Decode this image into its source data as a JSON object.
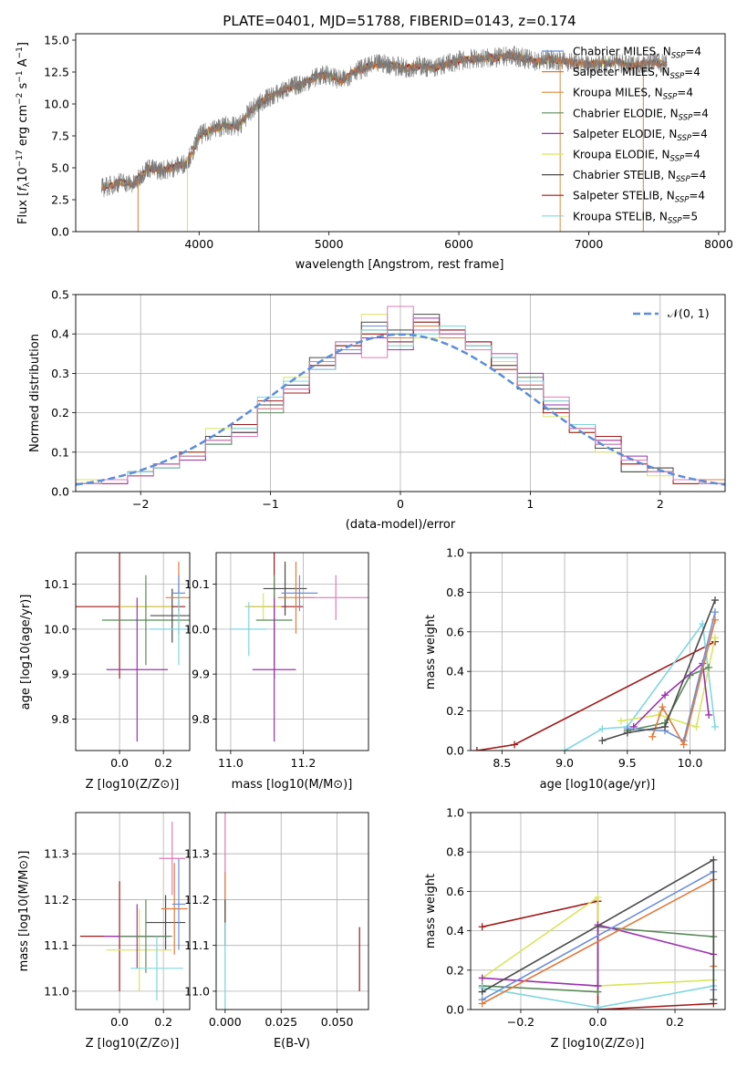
{
  "colors": {
    "Chabrier MILES": "#6b8fd6",
    "Salpeter MILES": "#e07b3c",
    "Kroupa MILES": "#d98b3a",
    "Chabrier ELODIE": "#5a8a5a",
    "Salpeter ELODIE": "#9b30b0",
    "Kroupa ELODIE": "#d7e65a",
    "Chabrier STELIB": "#4a4a4a",
    "Salpeter STELIB": "#a01818",
    "Kroupa STELIB": "#7fd6e0",
    "pink": "#e07ab8",
    "normal": "#5b8dd9"
  },
  "chart_data": [
    {
      "id": "spectrum",
      "type": "line",
      "title": "PLATE=0401, MJD=51788, FIBERID=0143, z=0.174",
      "xlabel": "wavelength [Angstrom, rest frame]",
      "ylabel": "Flux [f_λ 10^{-17} erg cm^{-2} s^{-1} A^{-1}]",
      "xlim": [
        3050,
        8050
      ],
      "ylim": [
        0,
        15.5
      ],
      "xticks": [
        4000,
        5000,
        6000,
        7000,
        8000
      ],
      "yticks": [
        0.0,
        2.5,
        5.0,
        7.5,
        10.0,
        12.5,
        15.0
      ],
      "grid": false,
      "legend_position": "top-right",
      "legend": [
        "Chabrier MILES, N_SSP=4",
        "Salpeter MILES, N_SSP=4",
        "Kroupa MILES, N_SSP=4",
        "Chabrier ELODIE, N_SSP=4",
        "Salpeter ELODIE, N_SSP=4",
        "Kroupa ELODIE, N_SSP=4",
        "Chabrier STELIB, N_SSP=4",
        "Salpeter STELIB, N_SSP=4",
        "Kroupa STELIB, N_SSP=5"
      ],
      "data_trace": {
        "x": [
          3250,
          3400,
          3500,
          3600,
          3700,
          3800,
          3900,
          3950,
          4000,
          4100,
          4200,
          4300,
          4400,
          4500,
          4600,
          4700,
          4800,
          4900,
          5000,
          5100,
          5200,
          5300,
          5400,
          5500,
          5600,
          5700,
          5800,
          5900,
          6000,
          6100,
          6200,
          6300,
          6400,
          6500,
          6600,
          6700,
          6800,
          6900,
          7000,
          7100,
          7200,
          7300,
          7400,
          7500,
          7600
        ],
        "y": [
          3.4,
          3.9,
          3.7,
          5.0,
          4.8,
          5.0,
          5.4,
          6.2,
          7.5,
          8.0,
          8.3,
          8.2,
          9.5,
          10.3,
          10.8,
          11.3,
          11.6,
          12.1,
          12.3,
          11.8,
          12.6,
          12.9,
          13.2,
          13.0,
          12.8,
          13.0,
          12.8,
          13.1,
          13.4,
          13.5,
          13.6,
          13.6,
          13.8,
          13.6,
          13.3,
          13.5,
          13.4,
          13.2,
          13.1,
          13.2,
          13.3,
          13.0,
          13.1,
          13.3,
          13.1
        ]
      }
    },
    {
      "id": "residuals",
      "type": "step",
      "xlabel": "(data-model)/error",
      "ylabel": "Normed distribution",
      "xlim": [
        -2.5,
        2.5
      ],
      "ylim": [
        0,
        0.5
      ],
      "xticks": [
        -2,
        -1,
        0,
        1,
        2
      ],
      "yticks": [
        0.0,
        0.1,
        0.2,
        0.3,
        0.4,
        0.5
      ],
      "grid": true,
      "legend_position": "top-right",
      "legend": [
        "𝒩(0, 1)"
      ],
      "bin_edges": [
        -2.5,
        -2.3,
        -2.1,
        -1.9,
        -1.7,
        -1.5,
        -1.3,
        -1.1,
        -0.9,
        -0.7,
        -0.5,
        -0.3,
        -0.1,
        0.1,
        0.3,
        0.5,
        0.7,
        0.9,
        1.1,
        1.3,
        1.5,
        1.7,
        1.9,
        2.1,
        2.3,
        2.5
      ],
      "normal_curve": {
        "mean": 0,
        "sd": 1
      },
      "series": [
        {
          "name": "Chabrier MILES",
          "values": [
            0.02,
            0.03,
            0.04,
            0.06,
            0.08,
            0.12,
            0.16,
            0.22,
            0.27,
            0.32,
            0.36,
            0.42,
            0.38,
            0.41,
            0.4,
            0.37,
            0.33,
            0.28,
            0.22,
            0.17,
            0.12,
            0.08,
            0.05,
            0.03,
            0.02
          ]
        },
        {
          "name": "Salpeter MILES",
          "values": [
            0.03,
            0.02,
            0.05,
            0.07,
            0.09,
            0.13,
            0.15,
            0.21,
            0.28,
            0.33,
            0.37,
            0.4,
            0.39,
            0.42,
            0.39,
            0.38,
            0.32,
            0.27,
            0.23,
            0.16,
            0.13,
            0.07,
            0.06,
            0.02,
            0.03
          ]
        },
        {
          "name": "Chabrier ELODIE",
          "values": [
            0.02,
            0.03,
            0.05,
            0.06,
            0.09,
            0.12,
            0.17,
            0.2,
            0.26,
            0.33,
            0.38,
            0.41,
            0.4,
            0.43,
            0.4,
            0.36,
            0.34,
            0.29,
            0.21,
            0.15,
            0.12,
            0.05,
            0.05,
            0.03,
            0.02
          ]
        },
        {
          "name": "Salpeter ELODIE",
          "values": [
            0.02,
            0.02,
            0.04,
            0.07,
            0.08,
            0.13,
            0.15,
            0.22,
            0.25,
            0.31,
            0.35,
            0.39,
            0.36,
            0.44,
            0.41,
            0.38,
            0.35,
            0.3,
            0.22,
            0.17,
            0.13,
            0.09,
            0.05,
            0.03,
            0.02
          ]
        },
        {
          "name": "Kroupa ELODIE",
          "values": [
            0.03,
            0.03,
            0.05,
            0.06,
            0.1,
            0.16,
            0.16,
            0.21,
            0.29,
            0.33,
            0.38,
            0.45,
            0.37,
            0.39,
            0.42,
            0.37,
            0.33,
            0.27,
            0.19,
            0.15,
            0.1,
            0.08,
            0.04,
            0.03,
            0.02
          ]
        },
        {
          "name": "Chabrier STELIB",
          "values": [
            0.02,
            0.03,
            0.05,
            0.07,
            0.09,
            0.14,
            0.15,
            0.22,
            0.27,
            0.34,
            0.37,
            0.43,
            0.41,
            0.45,
            0.4,
            0.37,
            0.32,
            0.26,
            0.21,
            0.16,
            0.11,
            0.05,
            0.06,
            0.03,
            0.02
          ]
        },
        {
          "name": "Salpeter STELIB",
          "values": [
            0.02,
            0.03,
            0.04,
            0.06,
            0.1,
            0.13,
            0.17,
            0.23,
            0.25,
            0.32,
            0.37,
            0.4,
            0.38,
            0.43,
            0.41,
            0.38,
            0.31,
            0.27,
            0.2,
            0.15,
            0.14,
            0.07,
            0.05,
            0.02,
            0.02
          ]
        },
        {
          "name": "Kroupa STELIB",
          "values": [
            0.02,
            0.03,
            0.05,
            0.06,
            0.09,
            0.13,
            0.16,
            0.24,
            0.28,
            0.31,
            0.38,
            0.41,
            0.37,
            0.4,
            0.42,
            0.37,
            0.34,
            0.28,
            0.23,
            0.17,
            0.12,
            0.08,
            0.05,
            0.03,
            0.02
          ]
        },
        {
          "name": "pink",
          "values": [
            0.02,
            0.03,
            0.04,
            0.07,
            0.09,
            0.13,
            0.14,
            0.21,
            0.26,
            0.33,
            0.38,
            0.34,
            0.47,
            0.41,
            0.4,
            0.36,
            0.35,
            0.27,
            0.24,
            0.16,
            0.12,
            0.08,
            0.05,
            0.03,
            0.02
          ]
        }
      ]
    },
    {
      "id": "age-vs-Z",
      "type": "errorbar",
      "xlabel": "Z [log10(Z/Z⊙)]",
      "ylabel": "age [log10(age/yr)]",
      "xlim": [
        -0.2,
        0.32
      ],
      "ylim": [
        9.73,
        10.17
      ],
      "xticks": [
        0.0,
        0.2
      ],
      "yticks": [
        9.8,
        9.9,
        10.0,
        10.1
      ],
      "grid": true,
      "points": [
        {
          "series": "Salpeter STELIB",
          "x": 0.0,
          "xerr": 0.3,
          "y": 10.05,
          "yerr": 0.16
        },
        {
          "series": "Kroupa ELODIE",
          "x": 0.12,
          "xerr": 0.12,
          "y": 10.05,
          "yerr": 0.03
        },
        {
          "series": "Chabrier ELODIE",
          "x": 0.12,
          "xerr": 0.2,
          "y": 10.02,
          "yerr": 0.1
        },
        {
          "series": "Chabrier STELIB",
          "x": 0.24,
          "xerr": 0.1,
          "y": 10.03,
          "yerr": 0.06
        },
        {
          "series": "Salpeter MILES",
          "x": 0.27,
          "xerr": 0.06,
          "y": 10.07,
          "yerr": 0.08
        },
        {
          "series": "Chabrier MILES",
          "x": 0.27,
          "xerr": 0.03,
          "y": 10.08,
          "yerr": 0.04
        },
        {
          "series": "Kroupa STELIB",
          "x": 0.27,
          "xerr": 0.13,
          "y": 10.0,
          "yerr": 0.08
        },
        {
          "series": "Salpeter ELODIE",
          "x": 0.08,
          "xerr": 0.14,
          "y": 9.91,
          "yerr": 0.16
        }
      ]
    },
    {
      "id": "age-vs-mass",
      "type": "errorbar",
      "xlabel": "mass [log10(M/M⊙)]",
      "ylabel": "",
      "xlim": [
        10.96,
        11.38
      ],
      "ylim": [
        9.73,
        10.17
      ],
      "xticks": [
        11.0,
        11.2
      ],
      "yticks": [
        9.8,
        9.9,
        10.0,
        10.1
      ],
      "grid": true,
      "points": [
        {
          "series": "Salpeter STELIB",
          "x": 11.12,
          "xerr": 0.08,
          "y": 10.05,
          "yerr": 0.16
        },
        {
          "series": "Kroupa ELODIE",
          "x": 11.09,
          "xerr": 0.05,
          "y": 10.05,
          "yerr": 0.03
        },
        {
          "series": "Chabrier ELODIE",
          "x": 11.12,
          "xerr": 0.05,
          "y": 10.02,
          "yerr": 0.1
        },
        {
          "series": "Chabrier STELIB",
          "x": 11.15,
          "xerr": 0.06,
          "y": 10.09,
          "yerr": 0.06
        },
        {
          "series": "Salpeter MILES",
          "x": 11.18,
          "xerr": 0.05,
          "y": 10.07,
          "yerr": 0.08
        },
        {
          "series": "Chabrier MILES",
          "x": 11.19,
          "xerr": 0.05,
          "y": 10.08,
          "yerr": 0.04
        },
        {
          "series": "Kroupa STELIB",
          "x": 11.05,
          "xerr": 0.05,
          "y": 10.0,
          "yerr": 0.06
        },
        {
          "series": "Salpeter ELODIE",
          "x": 11.12,
          "xerr": 0.06,
          "y": 9.91,
          "yerr": 0.16
        },
        {
          "series": "pink",
          "x": 11.29,
          "xerr": 0.09,
          "y": 10.07,
          "yerr": 0.05
        }
      ]
    },
    {
      "id": "mass-weight-vs-age",
      "type": "line",
      "xlabel": "age [log10(age/yr)]",
      "ylabel": "mass weight",
      "xlim": [
        8.25,
        10.28
      ],
      "ylim": [
        0,
        1.0
      ],
      "xticks": [
        8.5,
        9.0,
        9.5,
        10.0
      ],
      "yticks": [
        0.0,
        0.2,
        0.4,
        0.6,
        0.8,
        1.0
      ],
      "grid": true,
      "series": [
        {
          "name": "Salpeter STELIB",
          "x": [
            8.3,
            8.6,
            10.2
          ],
          "y": [
            0.0,
            0.03,
            0.55
          ]
        },
        {
          "name": "Kroupa STELIB",
          "x": [
            9.0,
            9.3,
            9.5,
            10.1,
            10.2
          ],
          "y": [
            0.0,
            0.11,
            0.12,
            0.64,
            0.12
          ]
        },
        {
          "name": "Kroupa ELODIE",
          "x": [
            9.45,
            9.75,
            10.05,
            10.2
          ],
          "y": [
            0.15,
            0.18,
            0.12,
            0.57
          ]
        },
        {
          "name": "Chabrier ELODIE",
          "x": [
            9.5,
            9.8,
            10.0,
            10.15
          ],
          "y": [
            0.1,
            0.14,
            0.38,
            0.42
          ]
        },
        {
          "name": "Salpeter ELODIE",
          "x": [
            9.55,
            9.8,
            10.1,
            10.15
          ],
          "y": [
            0.12,
            0.28,
            0.44,
            0.18
          ]
        },
        {
          "name": "Chabrier MILES",
          "x": [
            9.5,
            9.8,
            9.95,
            10.2
          ],
          "y": [
            0.11,
            0.1,
            0.05,
            0.7
          ]
        },
        {
          "name": "Salpeter MILES",
          "x": [
            9.7,
            9.78,
            9.95,
            10.2
          ],
          "y": [
            0.07,
            0.22,
            0.03,
            0.66
          ]
        },
        {
          "name": "Chabrier STELIB",
          "x": [
            9.3,
            9.5,
            9.8,
            10.2
          ],
          "y": [
            0.05,
            0.09,
            0.12,
            0.76
          ]
        }
      ]
    },
    {
      "id": "mass-vs-Z",
      "type": "errorbar",
      "xlabel": "Z [log10(Z/Z⊙)]",
      "ylabel": "mass [log10(M/M⊙)]",
      "xlim": [
        -0.2,
        0.32
      ],
      "ylim": [
        10.96,
        11.39
      ],
      "xticks": [
        0.0,
        0.2
      ],
      "yticks": [
        11.0,
        11.1,
        11.2,
        11.3
      ],
      "grid": true,
      "points": [
        {
          "series": "Salpeter STELIB",
          "x": 0.0,
          "xerr": 0.18,
          "y": 11.12,
          "yerr": 0.12
        },
        {
          "series": "Chabrier STELIB",
          "x": 0.21,
          "xerr": 0.09,
          "y": 11.15,
          "yerr": 0.06
        },
        {
          "series": "Salpeter MILES",
          "x": 0.25,
          "xerr": 0.06,
          "y": 11.18,
          "yerr": 0.1
        },
        {
          "series": "Chabrier MILES",
          "x": 0.27,
          "xerr": 0.03,
          "y": 11.19,
          "yerr": 0.1
        },
        {
          "series": "pink",
          "x": 0.24,
          "xerr": 0.06,
          "y": 11.29,
          "yerr": 0.08
        },
        {
          "series": "Kroupa ELODIE",
          "x": 0.09,
          "xerr": 0.15,
          "y": 11.09,
          "yerr": 0.09
        },
        {
          "series": "Salpeter ELODIE",
          "x": 0.08,
          "xerr": 0.15,
          "y": 11.12,
          "yerr": 0.07
        },
        {
          "series": "Chabrier ELODIE",
          "x": 0.12,
          "xerr": 0.12,
          "y": 11.12,
          "yerr": 0.08
        },
        {
          "series": "Kroupa STELIB",
          "x": 0.17,
          "xerr": 0.12,
          "y": 11.05,
          "yerr": 0.07
        }
      ]
    },
    {
      "id": "mass-vs-EBV",
      "type": "errorbar",
      "xlabel": "E(B-V)",
      "ylabel": "",
      "xlim": [
        -0.004,
        0.064
      ],
      "ylim": [
        10.96,
        11.39
      ],
      "xticks": [
        0.0,
        0.025,
        0.05
      ],
      "yticks": [
        11.0,
        11.1,
        11.2,
        11.3
      ],
      "grid": true,
      "points": [
        {
          "series": "pink",
          "x": 0.0,
          "xerr": 0,
          "y": 11.29,
          "yerr": 0.1
        },
        {
          "series": "Salpeter MILES",
          "x": 0.0,
          "xerr": 0,
          "y": 11.18,
          "yerr": 0.08
        },
        {
          "series": "Chabrier STELIB",
          "x": 0.0,
          "xerr": 0,
          "y": 11.15,
          "yerr": 0.05
        },
        {
          "series": "Kroupa STELIB",
          "x": 0.0,
          "xerr": 0,
          "y": 11.05,
          "yerr": 0.1
        },
        {
          "series": "Salpeter STELIB",
          "x": 0.06,
          "xerr": 0,
          "y": 11.07,
          "yerr": 0.07
        }
      ]
    },
    {
      "id": "mass-weight-vs-Z",
      "type": "line",
      "xlabel": "Z [log10(Z/Z⊙)]",
      "ylabel": "mass weight",
      "xlim": [
        -0.33,
        0.33
      ],
      "ylim": [
        0,
        1.0
      ],
      "xticks": [
        -0.2,
        0.0,
        0.2
      ],
      "yticks": [
        0.0,
        0.2,
        0.4,
        0.6,
        0.8,
        1.0
      ],
      "grid": true,
      "series": [
        {
          "name": "Salpeter STELIB",
          "x": [
            -0.3,
            0.0,
            0.0,
            0.3
          ],
          "y": [
            0.42,
            0.55,
            0.0,
            0.03
          ]
        },
        {
          "name": "Kroupa ELODIE",
          "x": [
            -0.3,
            0.0,
            0.0,
            0.3
          ],
          "y": [
            0.16,
            0.57,
            0.12,
            0.15
          ]
        },
        {
          "name": "Chabrier ELODIE",
          "x": [
            -0.3,
            0.0,
            0.0,
            0.3
          ],
          "y": [
            0.12,
            0.09,
            0.42,
            0.37
          ]
        },
        {
          "name": "Salpeter ELODIE",
          "x": [
            -0.3,
            0.0,
            0.0,
            0.3
          ],
          "y": [
            0.16,
            0.12,
            0.43,
            0.28
          ]
        },
        {
          "name": "Kroupa STELIB",
          "x": [
            -0.3,
            0.0,
            0.3,
            0.3
          ],
          "y": [
            0.11,
            0.01,
            0.12,
            0.22
          ]
        },
        {
          "name": "Chabrier MILES",
          "x": [
            -0.3,
            0.3,
            0.3
          ],
          "y": [
            0.05,
            0.7,
            0.1
          ]
        },
        {
          "name": "Salpeter MILES",
          "x": [
            -0.3,
            0.3,
            0.3
          ],
          "y": [
            0.03,
            0.66,
            0.22
          ]
        },
        {
          "name": "Chabrier STELIB",
          "x": [
            -0.3,
            0.3,
            0.3
          ],
          "y": [
            0.09,
            0.76,
            0.05
          ]
        }
      ]
    }
  ]
}
